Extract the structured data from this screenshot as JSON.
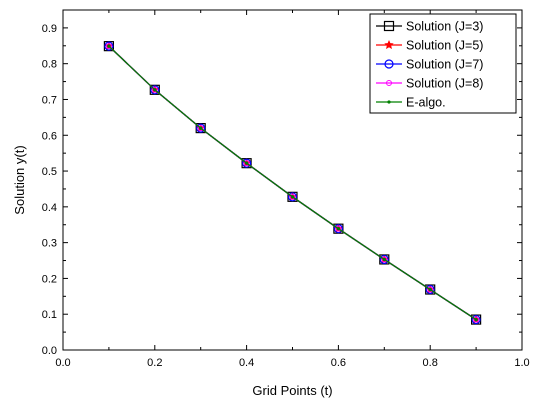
{
  "chart_data": {
    "type": "line",
    "xlabel": "Grid Points (t)",
    "ylabel": "Solution y(t)",
    "xlim": [
      0.0,
      1.0
    ],
    "ylim": [
      0.0,
      0.95
    ],
    "x_ticks": [
      "0.0",
      "0.2",
      "0.4",
      "0.6",
      "0.8",
      "1.0"
    ],
    "y_ticks": [
      "0.0",
      "0.1",
      "0.2",
      "0.3",
      "0.4",
      "0.5",
      "0.6",
      "0.7",
      "0.8",
      "0.9"
    ],
    "x_tick_values": [
      0.0,
      0.2,
      0.4,
      0.6,
      0.8,
      1.0
    ],
    "y_tick_values": [
      0.0,
      0.1,
      0.2,
      0.3,
      0.4,
      0.5,
      0.6,
      0.7,
      0.8,
      0.9
    ],
    "x": [
      0.1,
      0.2,
      0.3,
      0.4,
      0.5,
      0.6,
      0.7,
      0.8,
      0.9
    ],
    "legend_position": "top-right",
    "grid": false,
    "series": [
      {
        "name": "Solution (J=3)",
        "color": "#000000",
        "marker": "square",
        "values": [
          0.849,
          0.727,
          0.62,
          0.522,
          0.428,
          0.339,
          0.253,
          0.169,
          0.085
        ]
      },
      {
        "name": "Solution (J=5)",
        "color": "#ff0000",
        "marker": "star",
        "values": [
          0.849,
          0.727,
          0.62,
          0.522,
          0.428,
          0.339,
          0.253,
          0.169,
          0.085
        ]
      },
      {
        "name": "Solution (J=7)",
        "color": "#0000ff",
        "marker": "circle",
        "values": [
          0.849,
          0.727,
          0.62,
          0.522,
          0.428,
          0.339,
          0.253,
          0.169,
          0.085
        ]
      },
      {
        "name": "Solution (J=8)",
        "color": "#ff00ff",
        "marker": "small-circle",
        "values": [
          0.849,
          0.727,
          0.62,
          0.522,
          0.428,
          0.339,
          0.253,
          0.169,
          0.085
        ]
      },
      {
        "name": "E-algo.",
        "color": "#008000",
        "marker": "dot",
        "values": [
          0.849,
          0.727,
          0.62,
          0.522,
          0.428,
          0.339,
          0.253,
          0.169,
          0.085
        ]
      }
    ]
  }
}
